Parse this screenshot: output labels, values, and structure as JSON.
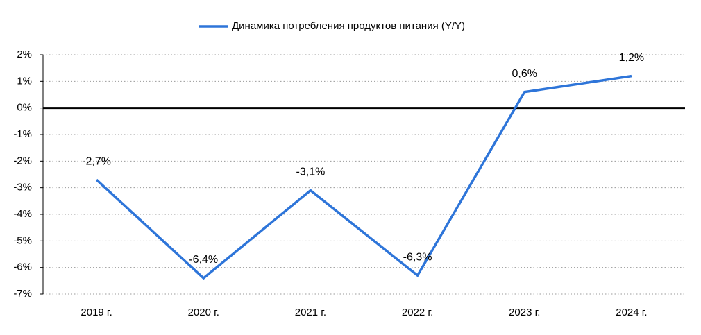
{
  "chart_data": {
    "type": "line",
    "categories": [
      "2019 г.",
      "2020 г.",
      "2021 г.",
      "2022 г.",
      "2023 г.",
      "2024 г."
    ],
    "series": [
      {
        "name": "Динамика потребления продуктов питания (Y/Y)",
        "color": "#2e75d9",
        "values": [
          -2.7,
          -6.4,
          -3.1,
          -6.3,
          0.6,
          1.2
        ],
        "value_labels": [
          "-2,7%",
          "-6,4%",
          "-3,1%",
          "-6,3%",
          "0,6%",
          "1,2%"
        ]
      }
    ],
    "ylim": [
      -7,
      2
    ],
    "yticks": [
      {
        "value": 2,
        "label": "2%"
      },
      {
        "value": 1,
        "label": "1%"
      },
      {
        "value": 0,
        "label": "0%"
      },
      {
        "value": -1,
        "label": "-1%"
      },
      {
        "value": -2,
        "label": "-2%"
      },
      {
        "value": -3,
        "label": "-3%"
      },
      {
        "value": -4,
        "label": "-4%"
      },
      {
        "value": -5,
        "label": "-5%"
      },
      {
        "value": -6,
        "label": "-6%"
      },
      {
        "value": -7,
        "label": "-7%"
      }
    ],
    "grid": true,
    "zero_line": true,
    "legend": "top"
  }
}
